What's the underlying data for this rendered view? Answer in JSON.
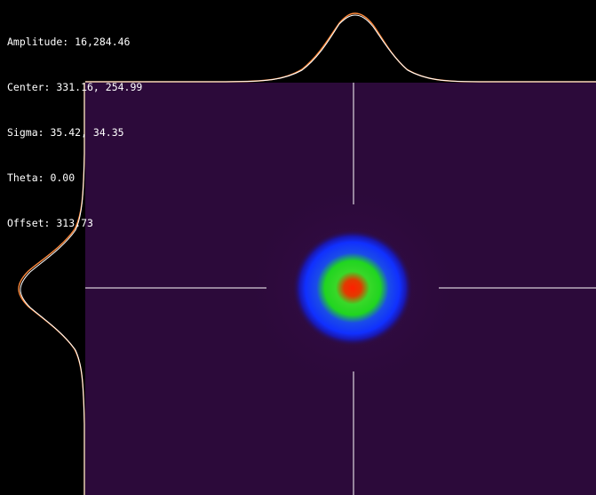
{
  "fit_results": {
    "amplitude": "Amplitude: 16,284.46",
    "center": "Center: 331.16, 254.99",
    "sigma": "Sigma: 35.42, 34.35",
    "theta": "Theta: 0.00",
    "offset": "Offset: 313.73"
  },
  "colors": {
    "background": "#000000",
    "image_background": "#2c0a3a",
    "crosshair": "#ffffff",
    "profile_data": "#ffffff",
    "profile_fit": "#ff8a3c",
    "beam_core": "#ff2000",
    "beam_mid": "#22dd22",
    "beam_outer": "#1030ff"
  },
  "icons": {
    "crosshair": "crosshair-icon"
  }
}
